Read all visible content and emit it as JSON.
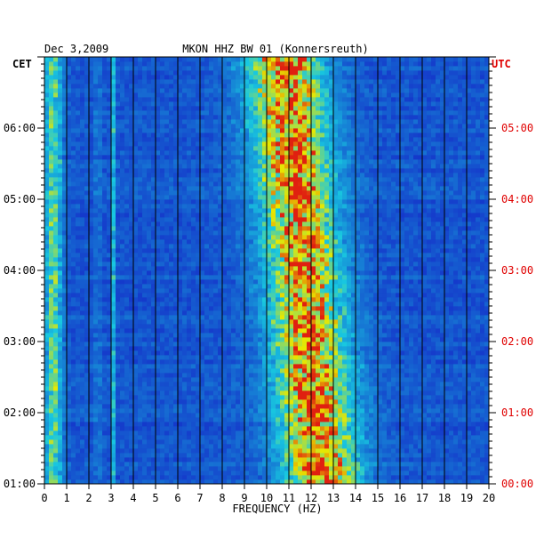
{
  "chart_data": {
    "type": "heatmap",
    "date": "Dec 3,2009",
    "title": "MKON HHZ BW 01 (Konnersreuth)",
    "left_zone": "CET",
    "right_zone": "UTC",
    "xlabel": "FREQUENCY (HZ)",
    "xlim": [
      0,
      20
    ],
    "x_ticks": [
      "0",
      "1",
      "2",
      "3",
      "4",
      "5",
      "6",
      "7",
      "8",
      "9",
      "10",
      "11",
      "12",
      "13",
      "14",
      "15",
      "16",
      "17",
      "18",
      "19",
      "20"
    ],
    "time_range_cet": [
      "01:00",
      "07:00"
    ],
    "left_time_ticks": [
      {
        "t": 6,
        "label": "06:00"
      },
      {
        "t": 5,
        "label": "05:00"
      },
      {
        "t": 4,
        "label": "04:00"
      },
      {
        "t": 3,
        "label": "03:00"
      },
      {
        "t": 2,
        "label": "02:00"
      },
      {
        "t": 1,
        "label": "01:00"
      }
    ],
    "right_time_ticks": [
      {
        "t": 6,
        "label": "05:00"
      },
      {
        "t": 5,
        "label": "04:00"
      },
      {
        "t": 4,
        "label": "03:00"
      },
      {
        "t": 3,
        "label": "02:00"
      },
      {
        "t": 2,
        "label": "01:00"
      },
      {
        "t": 1,
        "label": "00:00"
      }
    ],
    "colors": {
      "low": "#1428c8",
      "mid": "#18c8e0",
      "high": "#e8e800",
      "peak": "#e02010",
      "grid": "#000000",
      "utc_text": "#e00000"
    },
    "energy_bands": [
      {
        "name": "low-frequency edge",
        "f_center": 0.4,
        "width": 0.4,
        "level": 0.55
      },
      {
        "name": "line 2.4 Hz",
        "f_center": 2.4,
        "width": 0.08,
        "level": 0.35
      },
      {
        "name": "line 3.1 Hz",
        "f_center": 3.1,
        "width": 0.08,
        "level": 0.35
      },
      {
        "name": "main band",
        "f_center_start_1h": 12.5,
        "f_center_end_7h": 10.8,
        "width": 1.8,
        "level": 0.9
      }
    ]
  }
}
